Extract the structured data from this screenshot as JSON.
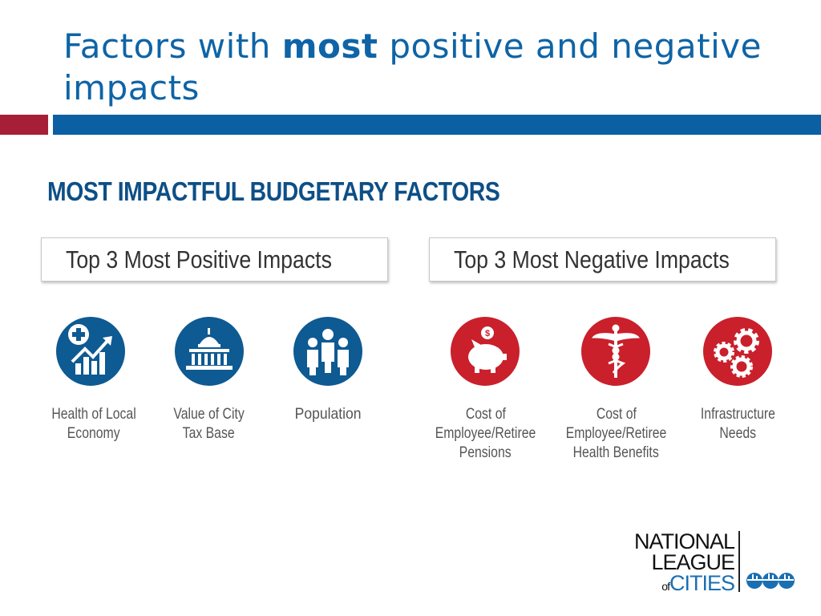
{
  "slide": {
    "title_pre": "Factors with ",
    "title_bold": "most",
    "title_post": " positive and negative impacts"
  },
  "graphic": {
    "heading": "MOST IMPACTFUL BUDGETARY FACTORS",
    "positive_box": "Top 3 Most Positive Impacts",
    "negative_box": "Top 3 Most Negative Impacts",
    "positive_items": [
      {
        "icon": "health-economy-icon",
        "lines": [
          "Health of Local",
          "Economy"
        ]
      },
      {
        "icon": "capitol-building-icon",
        "lines": [
          "Value of City",
          "Tax Base"
        ]
      },
      {
        "icon": "population-icon",
        "lines": [
          "Population"
        ]
      }
    ],
    "negative_items": [
      {
        "icon": "piggy-bank-icon",
        "lines": [
          "Cost of",
          "Employee/Retiree",
          "Pensions"
        ]
      },
      {
        "icon": "caduceus-icon",
        "lines": [
          "Cost of",
          "Employee/Retiree",
          "Health Benefits"
        ]
      },
      {
        "icon": "gears-icon",
        "lines": [
          "Infrastructure",
          "Needs"
        ]
      }
    ],
    "colors": {
      "positive": "#0e5a92",
      "negative": "#c9202c",
      "title": "#0e64a6",
      "accent_red": "#a61f37",
      "accent_blue": "#0a60a3"
    }
  },
  "logo": {
    "line1": "NATIONAL",
    "line2": "LEAGUE",
    "of": "of",
    "cities": "CITIES"
  }
}
